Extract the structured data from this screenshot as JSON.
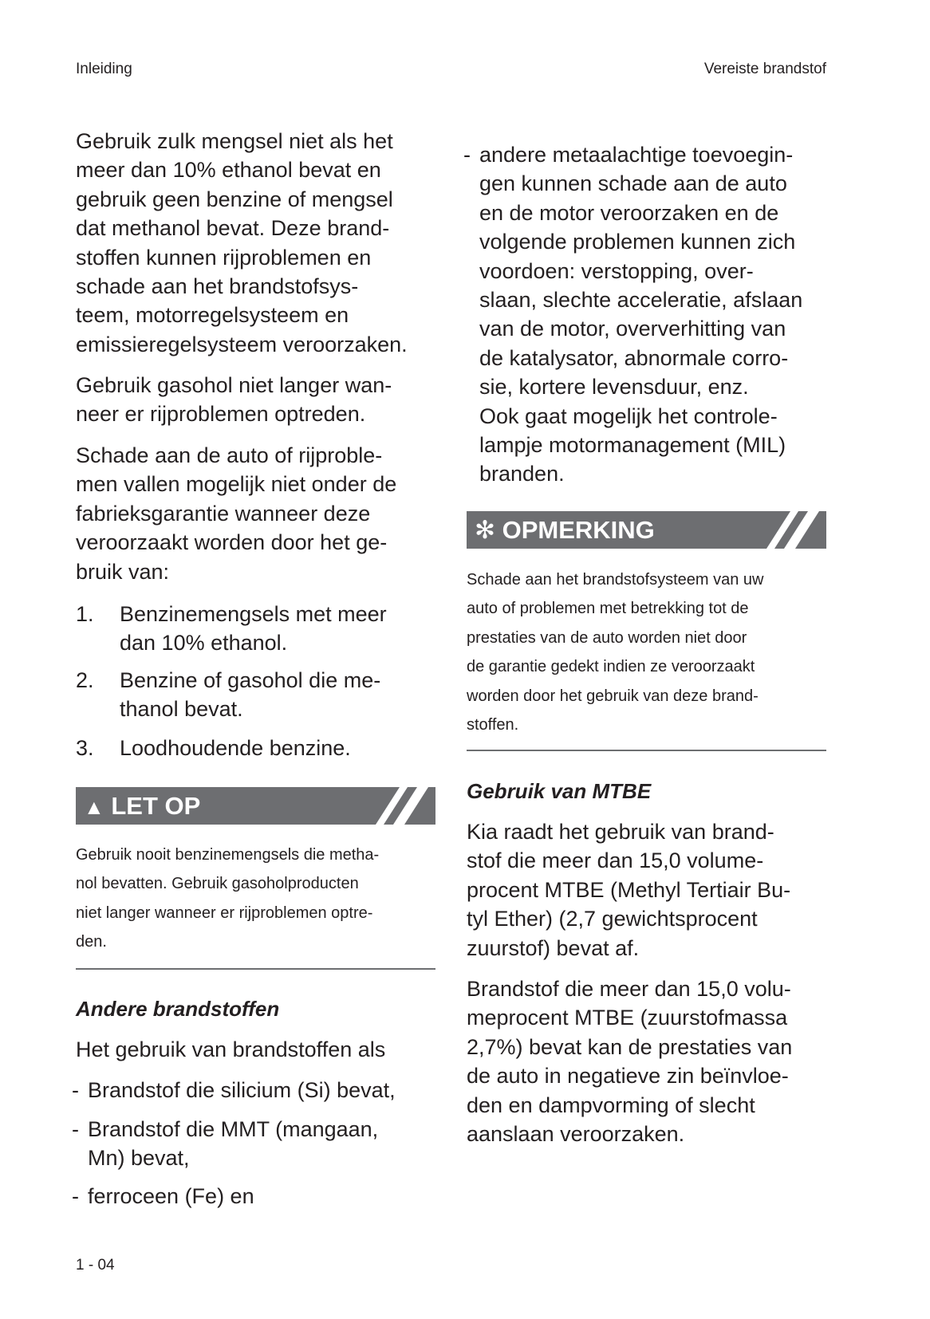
{
  "header": {
    "left": "Inleiding",
    "right": "Vereiste brandstof"
  },
  "left": {
    "p1": [
      "Gebruik zulk mengsel niet als het",
      "meer dan 10% ethanol bevat en",
      "gebruik geen benzine of mengsel",
      "dat methanol bevat. Deze brand-",
      "stoffen kunnen rijproblemen en",
      "schade aan het brandstofsys-",
      "teem, motorregelsysteem en",
      "emissieregelsysteem veroorzaken."
    ],
    "p2": [
      "Gebruik gasohol niet langer wan-",
      "neer er rijproblemen optreden."
    ],
    "p3": [
      "Schade aan de auto of rijproble-",
      "men vallen mogelijk niet onder de",
      "fabrieksgarantie wanneer deze",
      "veroorzaakt worden door het ge-",
      "bruik van:"
    ],
    "list": [
      {
        "num": "1.",
        "lines": [
          "Benzinemengsels met meer",
          "dan 10% ethanol."
        ]
      },
      {
        "num": "2.",
        "lines": [
          "Benzine of gasohol die me-",
          "thanol bevat."
        ]
      },
      {
        "num": "3.",
        "lines": [
          "Loodhoudende benzine."
        ]
      }
    ],
    "caution": {
      "icon": "warning-triangle-icon",
      "title": "LET OP",
      "lines": [
        "Gebruik nooit benzinemengsels die metha-",
        "nol bevatten. Gebruik gasoholproducten",
        "niet langer wanneer er rijproblemen optre-",
        "den."
      ]
    },
    "sub_title": "Andere brandstoffen",
    "p4": "Het gebruik van brandstoffen als",
    "dash_items": [
      {
        "dash": "-",
        "lines": [
          "Brandstof die silicium (Si) bevat,"
        ]
      },
      {
        "dash": "-",
        "lines": [
          "Brandstof die MMT (mangaan,",
          "Mn) bevat,"
        ]
      },
      {
        "dash": "-",
        "lines": [
          "ferroceen (Fe) en"
        ]
      }
    ]
  },
  "right": {
    "dash_item": {
      "dash": "-",
      "lines": [
        "andere metaalachtige toevoegin-",
        "gen kunnen schade aan de auto",
        "en de motor veroorzaken en de",
        "volgende problemen kunnen zich",
        "voordoen: verstopping, over-",
        "slaan, slechte acceleratie, afslaan",
        "van de motor, oververhitting van",
        "de katalysator, abnormale corro-",
        "sie, kortere levensduur, enz.",
        "Ook gaat mogelijk het controle-",
        "lampje motormanagement (MIL)",
        "branden."
      ]
    },
    "note": {
      "icon": "asterisk-icon",
      "symbol": "✻",
      "title": "OPMERKING",
      "lines": [
        "Schade aan het brandstofsysteem van uw",
        "auto of problemen met betrekking tot de",
        "prestaties van de auto worden niet door",
        "de garantie gedekt indien ze veroorzaakt",
        "worden door het gebruik van deze brand-",
        "stoffen."
      ]
    },
    "sub_title": "Gebruik van MTBE",
    "p1": [
      "Kia raadt het gebruik van brand-",
      "stof die meer dan 15,0 volume-",
      "procent MTBE (Methyl Tertiair Bu-",
      "tyl Ether) (2,7 gewichtsprocent",
      "zuurstof) bevat af."
    ],
    "p2": [
      "Brandstof die meer dan 15,0 volu-",
      "meprocent MTBE (zuurstofmassa",
      "2,7%) bevat kan de prestaties van",
      "de auto in negatieve zin beïnvloe-",
      "den en dampvorming of slecht",
      "aanslaan veroorzaken."
    ]
  },
  "footer": {
    "page_number": "1 - 04"
  },
  "colors": {
    "bar": "#6d6e71",
    "text": "#231f20"
  }
}
